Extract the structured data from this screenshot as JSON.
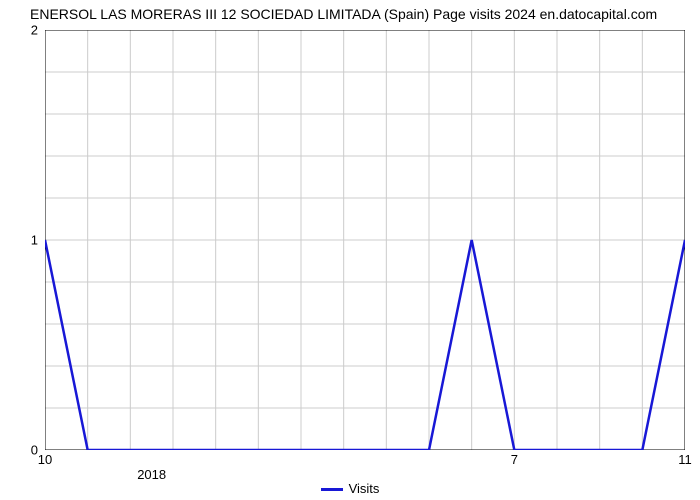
{
  "chart": {
    "type": "line",
    "title": "ENERSOL LAS MORERAS III 12 SOCIEDAD LIMITADA (Spain) Page visits 2024 en.datocapital.com",
    "title_fontsize": 14,
    "title_color": "#000000",
    "background_color": "#ffffff",
    "plot_border_color": "#000000",
    "grid_color": "#cccccc",
    "grid_width": 1,
    "line_color": "#1818d6",
    "line_width": 2.5,
    "x_domain": [
      0,
      15
    ],
    "y_domain": [
      0,
      2
    ],
    "y_ticks": [
      0,
      1,
      2
    ],
    "y_minor_ticks": [
      0.2,
      0.4,
      0.6,
      0.8,
      1.2,
      1.4,
      1.6,
      1.8
    ],
    "x_major_vlines": [
      0,
      1,
      2,
      3,
      4,
      5,
      6,
      7,
      8,
      9,
      10,
      11,
      12,
      13,
      14,
      15
    ],
    "x_tick_labels": [
      {
        "x": 0,
        "text": "10"
      },
      {
        "x": 11,
        "text": "7"
      },
      {
        "x": 15,
        "text": "11"
      }
    ],
    "x_year_labels": [
      {
        "x": 2.5,
        "text": "2018"
      }
    ],
    "tick_fontsize": 13,
    "tick_color": "#000000",
    "series_y": [
      1,
      0,
      0,
      0,
      0,
      0,
      0,
      0,
      0,
      0,
      1,
      0,
      0,
      0,
      0,
      1
    ],
    "legend": {
      "label": "Visits",
      "color": "#1818d6",
      "swatch_width": 22,
      "swatch_height": 3,
      "fontsize": 13
    }
  }
}
